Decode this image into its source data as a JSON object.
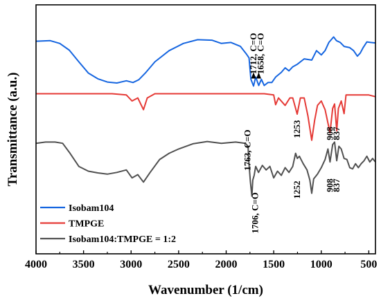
{
  "chart_data": {
    "type": "line",
    "xlabel": "Wavenumber (1/cm)",
    "ylabel": "Transmittance (a.u.)",
    "xlim": [
      4000,
      430
    ],
    "x_reversed": true,
    "ylim": [
      0,
      100
    ],
    "x_ticks": [
      "4000",
      "3500",
      "3000",
      "2500",
      "2000",
      "1500",
      "1000",
      "500"
    ],
    "y_ticks_shown": false,
    "grid": false,
    "legend_position": "bottom-left",
    "series": [
      {
        "name": "Isobam104",
        "color": "#1565e0",
        "points": [
          [
            4000,
            85.4
          ],
          [
            3850,
            85.6
          ],
          [
            3750,
            84.5
          ],
          [
            3650,
            81.8
          ],
          [
            3550,
            77.1
          ],
          [
            3450,
            72.6
          ],
          [
            3350,
            70.3
          ],
          [
            3250,
            69.0
          ],
          [
            3150,
            68.6
          ],
          [
            3050,
            69.5
          ],
          [
            2980,
            68.8
          ],
          [
            2920,
            69.9
          ],
          [
            2850,
            72.6
          ],
          [
            2750,
            77.1
          ],
          [
            2600,
            81.6
          ],
          [
            2450,
            84.5
          ],
          [
            2300,
            86.0
          ],
          [
            2150,
            85.8
          ],
          [
            2050,
            84.5
          ],
          [
            1950,
            84.9
          ],
          [
            1850,
            83.3
          ],
          [
            1790,
            80.4
          ],
          [
            1760,
            78.7
          ],
          [
            1740,
            70.1
          ],
          [
            1712,
            67.4
          ],
          [
            1690,
            71.0
          ],
          [
            1658,
            67.6
          ],
          [
            1630,
            70.1
          ],
          [
            1600,
            67.6
          ],
          [
            1560,
            68.8
          ],
          [
            1520,
            68.8
          ],
          [
            1480,
            71.0
          ],
          [
            1420,
            72.9
          ],
          [
            1380,
            74.7
          ],
          [
            1340,
            73.5
          ],
          [
            1300,
            75.1
          ],
          [
            1250,
            76.2
          ],
          [
            1180,
            78.3
          ],
          [
            1100,
            77.8
          ],
          [
            1050,
            81.6
          ],
          [
            1000,
            79.9
          ],
          [
            960,
            81.6
          ],
          [
            920,
            84.9
          ],
          [
            870,
            87.1
          ],
          [
            840,
            85.6
          ],
          [
            800,
            84.9
          ],
          [
            760,
            83.3
          ],
          [
            700,
            82.8
          ],
          [
            660,
            81.6
          ],
          [
            620,
            79.4
          ],
          [
            590,
            80.6
          ],
          [
            560,
            82.8
          ],
          [
            520,
            85.1
          ],
          [
            480,
            84.9
          ],
          [
            430,
            84.7
          ]
        ]
      },
      {
        "name": "TMPGE",
        "color": "#e53935",
        "points": [
          [
            4000,
            64.3
          ],
          [
            3600,
            64.3
          ],
          [
            3200,
            64.3
          ],
          [
            3050,
            63.8
          ],
          [
            2990,
            61.4
          ],
          [
            2930,
            62.6
          ],
          [
            2870,
            57.9
          ],
          [
            2830,
            62.6
          ],
          [
            2750,
            64.3
          ],
          [
            2400,
            64.3
          ],
          [
            2000,
            64.3
          ],
          [
            1800,
            64.3
          ],
          [
            1600,
            64.3
          ],
          [
            1500,
            63.8
          ],
          [
            1480,
            59.9
          ],
          [
            1450,
            62.6
          ],
          [
            1380,
            59.6
          ],
          [
            1330,
            62.6
          ],
          [
            1300,
            62.6
          ],
          [
            1253,
            56.1
          ],
          [
            1220,
            62.6
          ],
          [
            1180,
            62.6
          ],
          [
            1140,
            55.4
          ],
          [
            1100,
            45.6
          ],
          [
            1070,
            53.6
          ],
          [
            1040,
            59.6
          ],
          [
            1000,
            61.4
          ],
          [
            960,
            57.9
          ],
          [
            908,
            48.6
          ],
          [
            880,
            58.4
          ],
          [
            860,
            60.2
          ],
          [
            837,
            49.4
          ],
          [
            820,
            58.4
          ],
          [
            790,
            61.4
          ],
          [
            760,
            56.3
          ],
          [
            740,
            63.8
          ],
          [
            700,
            63.8
          ],
          [
            600,
            63.8
          ],
          [
            500,
            63.8
          ],
          [
            430,
            63.1
          ]
        ]
      },
      {
        "name": "Isobam104:TMPGE = 1:2",
        "color": "#505050",
        "points": [
          [
            4000,
            44.4
          ],
          [
            3900,
            44.9
          ],
          [
            3800,
            44.9
          ],
          [
            3720,
            44.4
          ],
          [
            3650,
            40.8
          ],
          [
            3550,
            35.1
          ],
          [
            3450,
            33.2
          ],
          [
            3350,
            32.5
          ],
          [
            3250,
            32.0
          ],
          [
            3150,
            32.7
          ],
          [
            3050,
            33.7
          ],
          [
            2990,
            30.5
          ],
          [
            2930,
            31.8
          ],
          [
            2870,
            28.8
          ],
          [
            2800,
            32.7
          ],
          [
            2700,
            37.9
          ],
          [
            2600,
            40.4
          ],
          [
            2500,
            42.1
          ],
          [
            2350,
            44.2
          ],
          [
            2200,
            45.1
          ],
          [
            2050,
            44.4
          ],
          [
            1900,
            44.9
          ],
          [
            1800,
            44.4
          ],
          [
            1770,
            43.2
          ],
          [
            1763,
            37.7
          ],
          [
            1745,
            28.8
          ],
          [
            1730,
            23.1
          ],
          [
            1720,
            29.6
          ],
          [
            1706,
            31.5
          ],
          [
            1690,
            35.1
          ],
          [
            1660,
            32.7
          ],
          [
            1620,
            35.5
          ],
          [
            1580,
            33.7
          ],
          [
            1540,
            35.1
          ],
          [
            1500,
            30.5
          ],
          [
            1460,
            33.2
          ],
          [
            1420,
            31.5
          ],
          [
            1380,
            34.6
          ],
          [
            1340,
            32.7
          ],
          [
            1300,
            35.1
          ],
          [
            1270,
            40.4
          ],
          [
            1252,
            38.3
          ],
          [
            1230,
            39.2
          ],
          [
            1190,
            36.2
          ],
          [
            1150,
            33.7
          ],
          [
            1120,
            29.6
          ],
          [
            1100,
            24.3
          ],
          [
            1080,
            30.1
          ],
          [
            1040,
            32.0
          ],
          [
            1000,
            34.6
          ],
          [
            960,
            37.9
          ],
          [
            930,
            42.1
          ],
          [
            908,
            36.9
          ],
          [
            880,
            43.9
          ],
          [
            860,
            44.9
          ],
          [
            837,
            37.4
          ],
          [
            815,
            43.2
          ],
          [
            790,
            42.1
          ],
          [
            760,
            38.3
          ],
          [
            730,
            37.9
          ],
          [
            700,
            34.6
          ],
          [
            670,
            34.1
          ],
          [
            640,
            36.2
          ],
          [
            610,
            34.6
          ],
          [
            580,
            36.2
          ],
          [
            550,
            37.4
          ],
          [
            520,
            39.2
          ],
          [
            490,
            36.9
          ],
          [
            460,
            38.3
          ],
          [
            430,
            36.9
          ]
        ]
      }
    ],
    "annotations": [
      {
        "text": "1712, C=O",
        "x": 1712,
        "y": 72.2,
        "rotate": -90
      },
      {
        "text": "1658, C=O",
        "x": 1635,
        "y": 72.2,
        "rotate": -90
      },
      {
        "text": "1253",
        "x": 1253,
        "y": 46.5,
        "rotate": -90
      },
      {
        "text": "908",
        "x": 908,
        "y": 45.6,
        "rotate": -90
      },
      {
        "text": "837",
        "x": 837,
        "y": 45.6,
        "rotate": -90
      },
      {
        "text": "1763, C=O",
        "x": 1775,
        "y": 33.4,
        "rotate": -90
      },
      {
        "text": "1706, C=O",
        "x": 1695,
        "y": 8.2,
        "rotate": -90
      },
      {
        "text": "1252",
        "x": 1252,
        "y": 22.1,
        "rotate": -90
      },
      {
        "text": "908",
        "x": 908,
        "y": 24.8,
        "rotate": -90
      },
      {
        "text": "837",
        "x": 837,
        "y": 24.8,
        "rotate": -90
      }
    ],
    "arrows": [
      {
        "x": 1712,
        "y": 70.4
      },
      {
        "x": 1658,
        "y": 70.4
      }
    ]
  }
}
